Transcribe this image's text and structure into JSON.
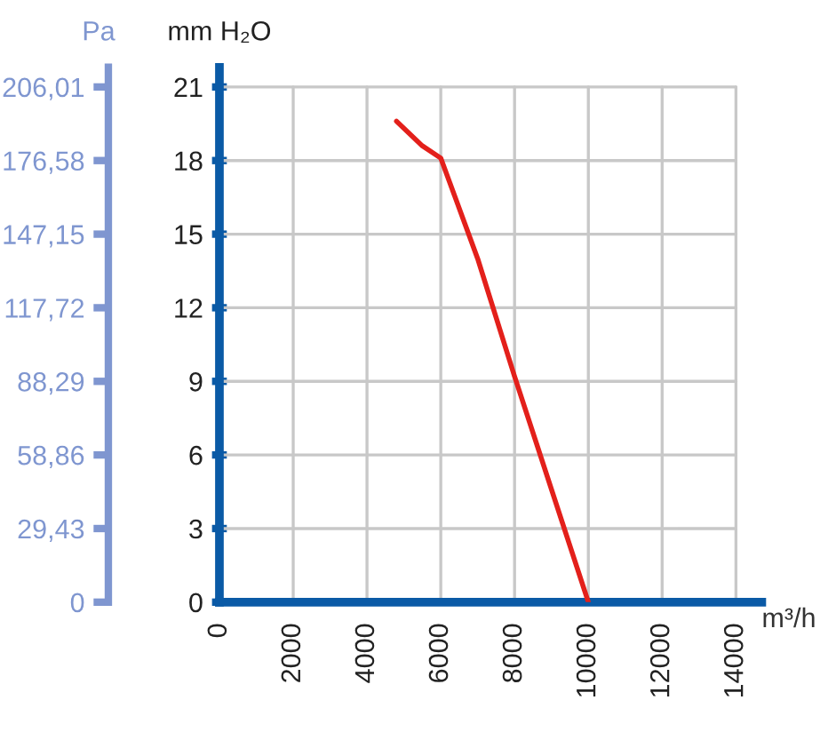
{
  "chart_data": {
    "type": "line",
    "xlabel": "m³/h",
    "ylabel": "mm H₂O",
    "y2label": "Pa",
    "x": [
      4800,
      5500,
      6000,
      7000,
      8000,
      9000,
      10000
    ],
    "series": [
      {
        "color": "#e3201b",
        "values": [
          19.6,
          18.6,
          18.1,
          14,
          9.2,
          4.6,
          0
        ]
      }
    ],
    "xlim": [
      0,
      14700
    ],
    "xticks": [
      0,
      2000,
      4000,
      6000,
      8000,
      10000,
      12000,
      14000
    ],
    "ylim": [
      0,
      21.8
    ],
    "yticks": [
      0,
      3,
      6,
      9,
      12,
      15,
      18,
      21
    ],
    "y2lim": [
      0,
      213.86
    ],
    "y2ticks": [
      0,
      {
        "value": 29.43,
        "label": "29,43"
      },
      {
        "value": 58.86,
        "label": "58,86"
      },
      {
        "value": 88.29,
        "label": "88,29"
      },
      {
        "value": 117.72,
        "label": "117,72"
      },
      {
        "value": 147.15,
        "label": "147,15"
      },
      {
        "value": 176.58,
        "label": "176,58"
      },
      {
        "value": 206.01,
        "label": "206,01"
      }
    ],
    "grid": true,
    "marker": "none",
    "line_style": "solid"
  }
}
